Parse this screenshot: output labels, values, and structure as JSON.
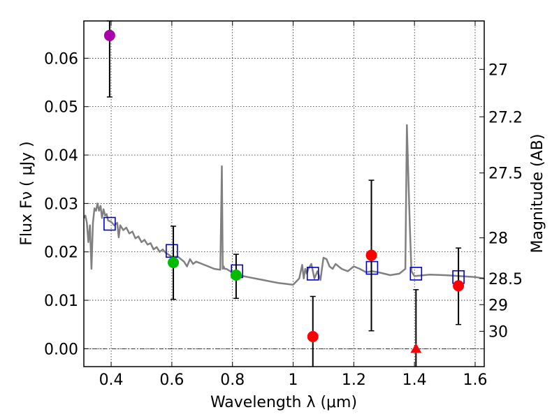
{
  "chart_data": {
    "type": "scatter",
    "xlabel": "Wavelength  λ (μm)",
    "ylabel": "Flux  Fν  ( μJy )",
    "y2label": "Magnitude (AB)",
    "xlim": [
      0.31,
      1.63
    ],
    "ylim": [
      -0.0037,
      0.0677
    ],
    "x_ticks": [
      0.4,
      0.6,
      0.8,
      1.0,
      1.2,
      1.4,
      1.6
    ],
    "x_tick_labels": [
      "0.4",
      "0.6",
      "0.8",
      "1",
      "1.2",
      "1.4",
      "1.6"
    ],
    "y_ticks": [
      0.0,
      0.01,
      0.02,
      0.03,
      0.04,
      0.05,
      0.06
    ],
    "y_tick_labels": [
      "0.00",
      "0.01",
      "0.02",
      "0.03",
      "0.04",
      "0.05",
      "0.06"
    ],
    "mag_ticks": [
      {
        "label": "27",
        "flux": 0.0577
      },
      {
        "label": "27.2",
        "flux": 0.0479
      },
      {
        "label": "27.5",
        "flux": 0.0363
      },
      {
        "label": "28",
        "flux": 0.0229
      },
      {
        "label": "28.5",
        "flux": 0.0145
      },
      {
        "label": "29",
        "flux": 0.0091
      },
      {
        "label": "30",
        "flux": 0.0036
      }
    ],
    "grid": true,
    "colors": {
      "sed": "#808080",
      "model": "#0000cc",
      "purple": "#aa00aa",
      "green": "#00bb00",
      "red": "#ff0000",
      "errorbar": "#000000"
    },
    "sed_model": {
      "name": "best-fit SED",
      "x": [
        0.31,
        0.315,
        0.32,
        0.325,
        0.33,
        0.335,
        0.34,
        0.345,
        0.35,
        0.355,
        0.36,
        0.365,
        0.37,
        0.375,
        0.38,
        0.385,
        0.39,
        0.4,
        0.41,
        0.42,
        0.425,
        0.43,
        0.44,
        0.45,
        0.46,
        0.47,
        0.48,
        0.49,
        0.5,
        0.51,
        0.52,
        0.53,
        0.54,
        0.55,
        0.56,
        0.57,
        0.58,
        0.6,
        0.62,
        0.64,
        0.65,
        0.66,
        0.67,
        0.68,
        0.7,
        0.72,
        0.74,
        0.76,
        0.765,
        0.768,
        0.771,
        0.774,
        0.78,
        0.8,
        0.82,
        0.85,
        0.9,
        0.95,
        1.0,
        1.02,
        1.03,
        1.035,
        1.04,
        1.045,
        1.05,
        1.06,
        1.07,
        1.08,
        1.09,
        1.1,
        1.11,
        1.12,
        1.13,
        1.14,
        1.16,
        1.18,
        1.2,
        1.22,
        1.24,
        1.26,
        1.28,
        1.3,
        1.32,
        1.35,
        1.37,
        1.375,
        1.38,
        1.385,
        1.39,
        1.4,
        1.45,
        1.5,
        1.55,
        1.6,
        1.63
      ],
      "y": [
        0.027,
        0.0275,
        0.026,
        0.022,
        0.0255,
        0.0165,
        0.026,
        0.029,
        0.0285,
        0.03,
        0.0285,
        0.0295,
        0.027,
        0.0288,
        0.0275,
        0.0278,
        0.0265,
        0.0262,
        0.0255,
        0.026,
        0.023,
        0.0255,
        0.0245,
        0.025,
        0.0238,
        0.0242,
        0.0228,
        0.0232,
        0.022,
        0.0225,
        0.0215,
        0.0218,
        0.0205,
        0.021,
        0.02,
        0.0205,
        0.0198,
        0.019,
        0.019,
        0.018,
        0.017,
        0.0185,
        0.0175,
        0.018,
        0.0175,
        0.017,
        0.0165,
        0.0163,
        0.0377,
        0.0165,
        0.017,
        0.0165,
        0.0165,
        0.0157,
        0.0152,
        0.0148,
        0.0142,
        0.0136,
        0.0132,
        0.0145,
        0.0173,
        0.0145,
        0.0165,
        0.0155,
        0.0165,
        0.0175,
        0.0145,
        0.016,
        0.0142,
        0.0188,
        0.0185,
        0.017,
        0.0165,
        0.0175,
        0.0165,
        0.016,
        0.017,
        0.0165,
        0.0158,
        0.016,
        0.0158,
        0.0155,
        0.0152,
        0.0155,
        0.0165,
        0.0462,
        0.035,
        0.025,
        0.016,
        0.015,
        0.0153,
        0.0152,
        0.015,
        0.0148,
        0.0145
      ]
    },
    "model_points": {
      "name": "model photometry",
      "x": [
        0.395,
        0.6,
        0.815,
        1.065,
        1.26,
        1.405,
        1.545
      ],
      "y": [
        0.0258,
        0.0202,
        0.016,
        0.0155,
        0.0167,
        0.0155,
        0.0148
      ]
    },
    "observations": [
      {
        "x": 0.395,
        "y": 0.0647,
        "err_low": 0.052,
        "err_high": 0.0677,
        "color": "purple",
        "marker": "circle"
      },
      {
        "x": 0.605,
        "y": 0.0178,
        "err_low": 0.0102,
        "err_high": 0.0253,
        "color": "green",
        "marker": "circle"
      },
      {
        "x": 0.812,
        "y": 0.0152,
        "err_low": 0.0104,
        "err_high": 0.0195,
        "color": "green",
        "marker": "circle"
      },
      {
        "x": 1.065,
        "y": 0.0025,
        "err_low": -0.0037,
        "err_high": 0.0108,
        "color": "red",
        "marker": "circle"
      },
      {
        "x": 1.258,
        "y": 0.0193,
        "err_low": 0.0037,
        "err_high": 0.0348,
        "color": "red",
        "marker": "circle"
      },
      {
        "x": 1.405,
        "y": 0.0,
        "err_low": -0.0037,
        "err_high": 0.0122,
        "color": "red",
        "marker": "triangle"
      },
      {
        "x": 1.545,
        "y": 0.013,
        "err_low": 0.005,
        "err_high": 0.0208,
        "color": "red",
        "marker": "circle"
      }
    ]
  }
}
